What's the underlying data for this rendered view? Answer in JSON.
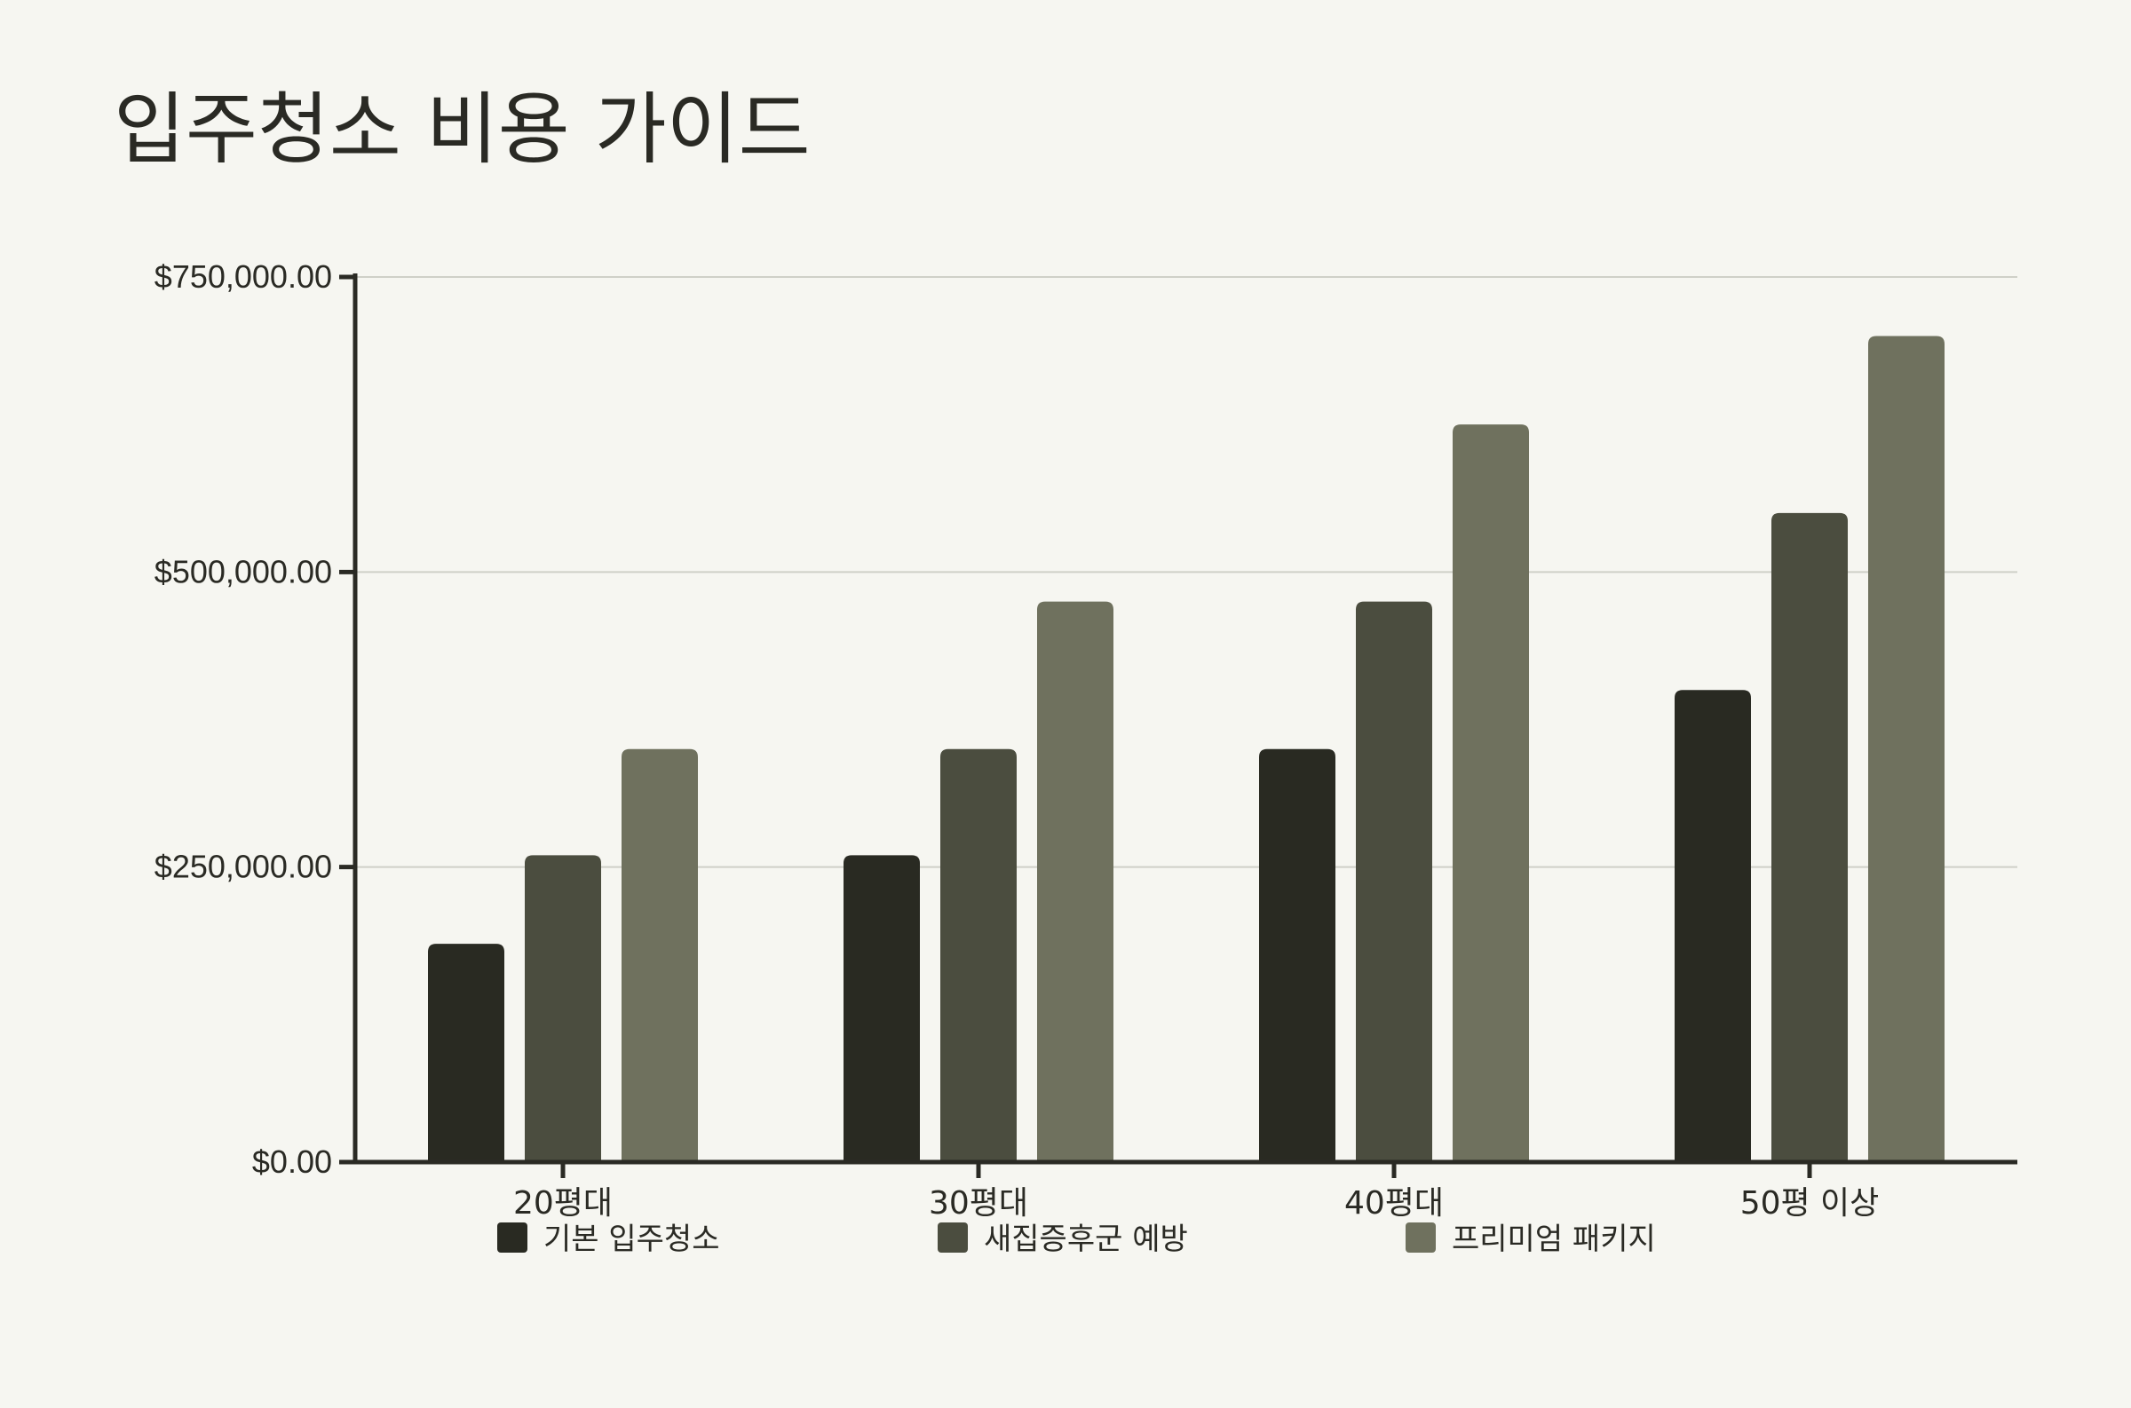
{
  "chart_data": {
    "type": "bar",
    "title": "입주청소 비용 가이드",
    "categories": [
      "20평대",
      "30평대",
      "40평대",
      "50평 이상"
    ],
    "series": [
      {
        "name": "기본 입주청소",
        "color": "#292a22",
        "values": [
          185000,
          260000,
          350000,
          400000
        ]
      },
      {
        "name": "새집증후군 예방",
        "color": "#4b4d3f",
        "values": [
          260000,
          350000,
          475000,
          550000
        ]
      },
      {
        "name": "프리미엄 패키지",
        "color": "#6f715e",
        "values": [
          350000,
          475000,
          625000,
          700000
        ]
      }
    ],
    "ylim": [
      0,
      750000
    ],
    "yticks": [
      0,
      250000,
      500000,
      750000
    ],
    "ytick_labels": [
      "$0.00",
      "$250,000.00",
      "$500,000.00",
      "$750,000.00"
    ],
    "grid": true,
    "legend": "bottom"
  }
}
